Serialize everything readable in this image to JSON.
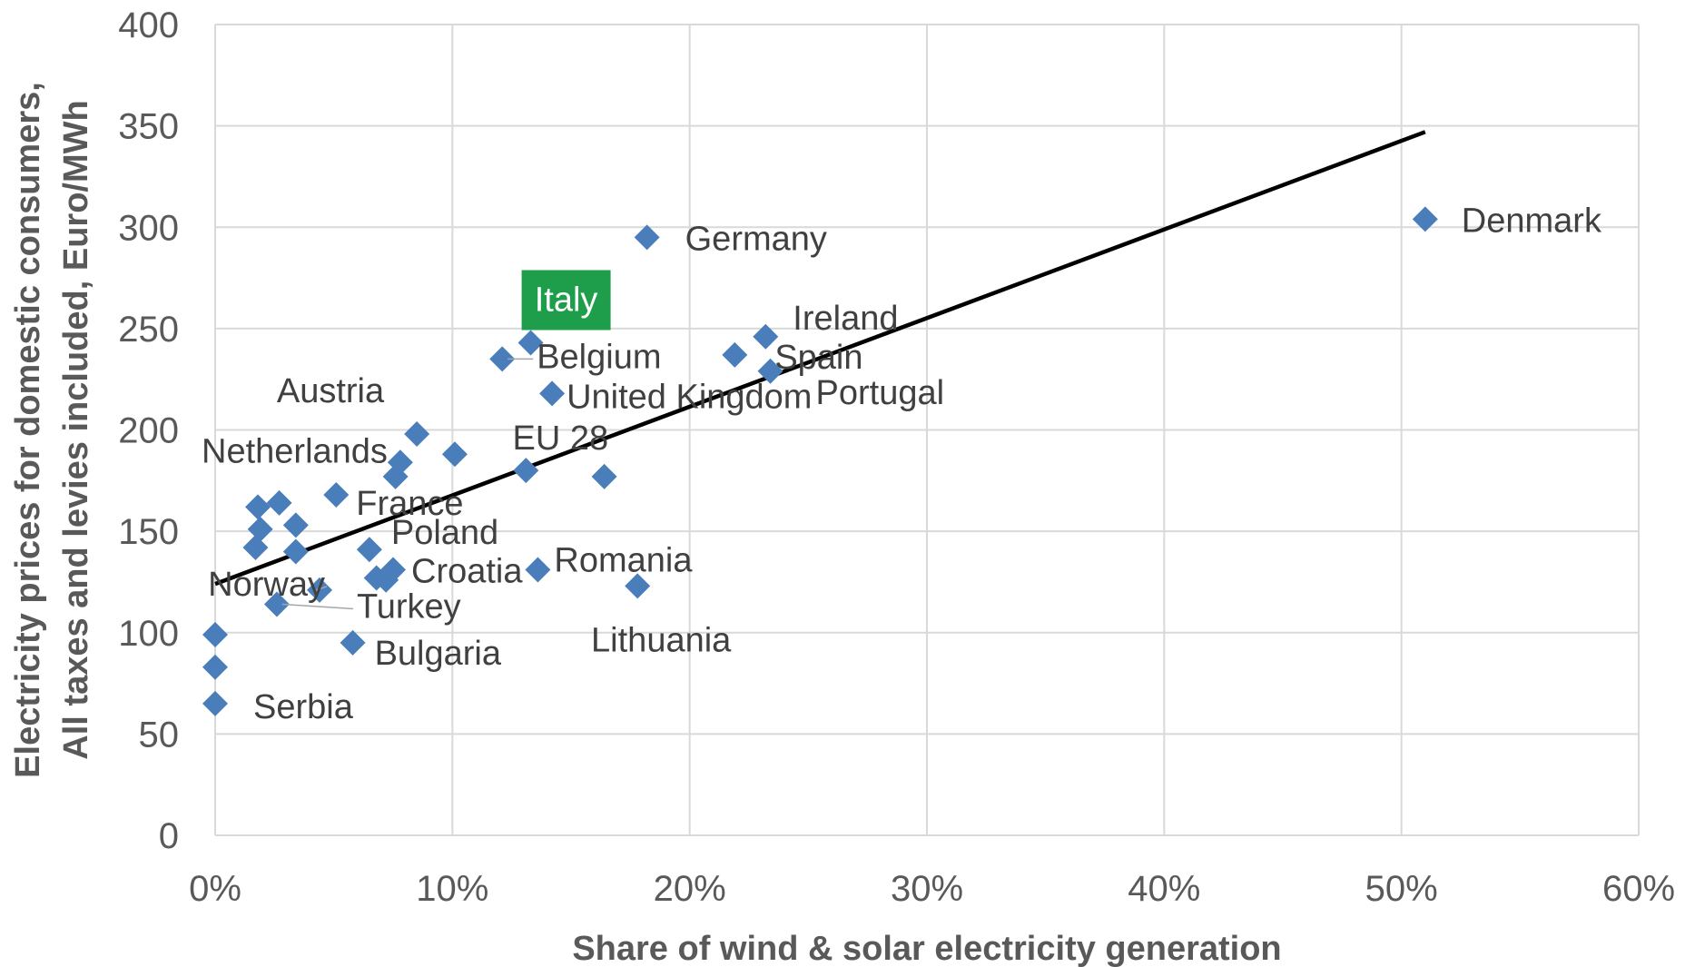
{
  "chart_data": {
    "type": "scatter",
    "xlabel": "Share of wind & solar electricity generation",
    "ylabel_line1": "Electricity prices for domestic consumers,",
    "ylabel_line2": "All taxes and levies included, Euro/MWh",
    "xlim": [
      0,
      0.6
    ],
    "ylim": [
      0,
      400
    ],
    "x_ticks": [
      {
        "value": 0,
        "label": "0%"
      },
      {
        "value": 0.1,
        "label": "10%"
      },
      {
        "value": 0.2,
        "label": "20%"
      },
      {
        "value": 0.3,
        "label": "30%"
      },
      {
        "value": 0.4,
        "label": "40%"
      },
      {
        "value": 0.5,
        "label": "50%"
      },
      {
        "value": 0.6,
        "label": "60%"
      }
    ],
    "y_ticks": [
      {
        "value": 0,
        "label": "0"
      },
      {
        "value": 50,
        "label": "50"
      },
      {
        "value": 100,
        "label": "100"
      },
      {
        "value": 150,
        "label": "150"
      },
      {
        "value": 200,
        "label": "200"
      },
      {
        "value": 250,
        "label": "250"
      },
      {
        "value": 300,
        "label": "300"
      },
      {
        "value": 350,
        "label": "350"
      },
      {
        "value": 400,
        "label": "400"
      }
    ],
    "grid": true,
    "marker_color": "#4a7ebb",
    "trendline_color": "#000000",
    "highlight_color": "#1e9e4a",
    "highlight_text_color": "#ffffff",
    "trendline": {
      "x": [
        0,
        0.51
      ],
      "y": [
        124,
        347
      ]
    },
    "points": [
      {
        "x": 0.51,
        "y": 304,
        "label": "Denmark"
      },
      {
        "x": 0.182,
        "y": 295,
        "label": "Germany"
      },
      {
        "x": 0.133,
        "y": 243,
        "label": "Italy",
        "highlight": true
      },
      {
        "x": 0.121,
        "y": 235,
        "label": "Belgium"
      },
      {
        "x": 0.232,
        "y": 246,
        "label": "Ireland"
      },
      {
        "x": 0.219,
        "y": 237,
        "label": "Spain"
      },
      {
        "x": 0.234,
        "y": 229,
        "label": "Portugal"
      },
      {
        "x": 0.142,
        "y": 218,
        "label": "United Kingdom"
      },
      {
        "x": 0.085,
        "y": 198,
        "label": "Austria"
      },
      {
        "x": 0.101,
        "y": 188,
        "label": "Netherlands"
      },
      {
        "x": 0.078,
        "y": 184,
        "label": ""
      },
      {
        "x": 0.076,
        "y": 177,
        "label": ""
      },
      {
        "x": 0.131,
        "y": 180,
        "label": "EU 28"
      },
      {
        "x": 0.164,
        "y": 177,
        "label": ""
      },
      {
        "x": 0.051,
        "y": 168,
        "label": "France"
      },
      {
        "x": 0.018,
        "y": 162,
        "label": ""
      },
      {
        "x": 0.027,
        "y": 164,
        "label": ""
      },
      {
        "x": 0.034,
        "y": 153,
        "label": ""
      },
      {
        "x": 0.019,
        "y": 151,
        "label": ""
      },
      {
        "x": 0.017,
        "y": 142,
        "label": ""
      },
      {
        "x": 0.034,
        "y": 140,
        "label": ""
      },
      {
        "x": 0.065,
        "y": 141,
        "label": "Poland"
      },
      {
        "x": 0.075,
        "y": 131,
        "label": "Croatia"
      },
      {
        "x": 0.068,
        "y": 127,
        "label": ""
      },
      {
        "x": 0.072,
        "y": 126,
        "label": ""
      },
      {
        "x": 0.136,
        "y": 131,
        "label": "Romania"
      },
      {
        "x": 0.178,
        "y": 123,
        "label": "Lithuania"
      },
      {
        "x": 0.044,
        "y": 121,
        "label": "Norway"
      },
      {
        "x": 0.026,
        "y": 114,
        "label": "Turkey"
      },
      {
        "x": 0.058,
        "y": 95,
        "label": "Bulgaria"
      },
      {
        "x": 0,
        "y": 99,
        "label": ""
      },
      {
        "x": 0,
        "y": 83,
        "label": ""
      },
      {
        "x": 0,
        "y": 65,
        "label": "Serbia"
      }
    ]
  }
}
